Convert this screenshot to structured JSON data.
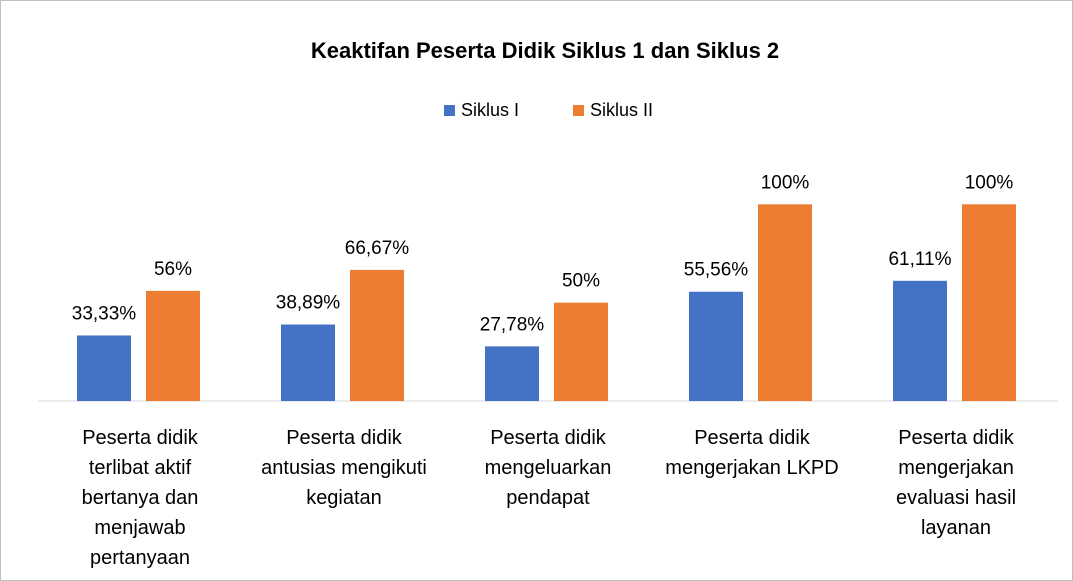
{
  "chart_data": {
    "type": "bar",
    "title": "Keaktifan Peserta Didik Siklus 1 dan Siklus 2",
    "categories": [
      "Peserta didik terlibat aktif bertanya dan menjawab pertanyaan",
      "Peserta didik antusias mengikuti kegiatan",
      "Peserta didik mengeluarkan pendapat",
      "Peserta didik mengerjakan LKPD",
      "Peserta didik mengerjakan evaluasi hasil layanan"
    ],
    "series": [
      {
        "name": "Siklus I",
        "color": "#4472c4",
        "values": [
          33.33,
          38.89,
          27.78,
          55.56,
          61.11
        ],
        "value_labels": [
          "33,33%",
          "38,89%",
          "27,78%",
          "55,56%",
          "61,11%"
        ]
      },
      {
        "name": "Siklus II",
        "color": "#ed7d31",
        "values": [
          56,
          66.67,
          50,
          100,
          100
        ],
        "value_labels": [
          "56%",
          "66,67%",
          "50%",
          "100%",
          "100%"
        ]
      }
    ],
    "ylim": [
      0,
      120
    ],
    "legend": "top"
  }
}
